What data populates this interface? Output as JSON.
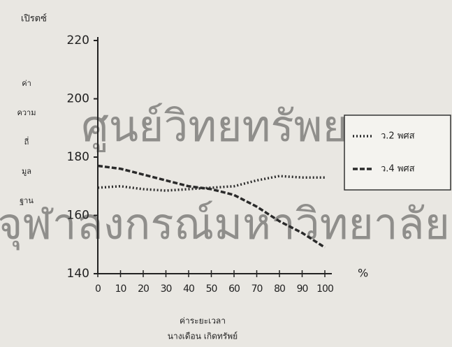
{
  "chart_data": {
    "type": "line",
    "watermark": [
      "ศูนย์วิทยทรัพยากร",
      "จุฬาลงกรณ์มหาวิทยาลัย"
    ],
    "y_unit": "เปิรตซ์",
    "ylabel_lines": [
      "ค่า",
      "ความ",
      "ถี่",
      "มูล",
      "ฐาน"
    ],
    "x_unit": "%",
    "xlabel": "ค่าระยะเวลา",
    "author": "นางเดือน เกิดทรัพย์",
    "x": [
      0,
      10,
      20,
      30,
      40,
      50,
      60,
      70,
      80,
      90,
      100
    ],
    "series": [
      {
        "name": "ว.2 พศส",
        "color": "#2a2a2a",
        "dash": "dotted",
        "values": [
          169.5,
          170,
          169,
          168.5,
          169,
          169.5,
          170,
          172,
          173.5,
          173,
          173
        ]
      },
      {
        "name": "ว.4 พศส",
        "color": "#2a2a2a",
        "dash": "dashed",
        "values": [
          177,
          176,
          174,
          172,
          170,
          169,
          167,
          163,
          158,
          154,
          149
        ]
      }
    ],
    "xlim": [
      0,
      100
    ],
    "xticks": [
      0,
      10,
      20,
      30,
      40,
      50,
      60,
      70,
      80,
      90,
      100
    ],
    "ylim": [
      140,
      220
    ],
    "yticks": [
      140,
      160,
      180,
      200,
      220
    ],
    "legend": "right"
  }
}
